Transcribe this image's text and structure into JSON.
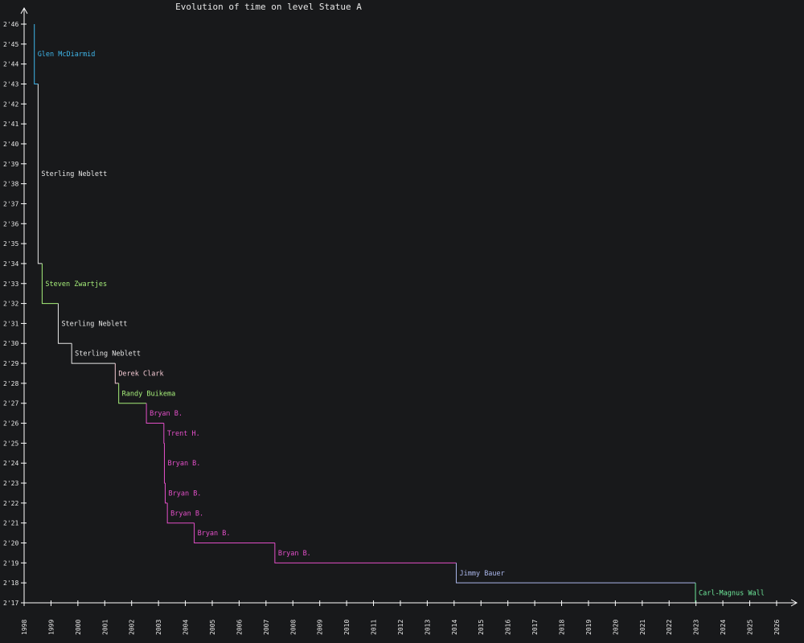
{
  "chart_data": {
    "type": "line",
    "step": true,
    "title": "Evolution of time on level Statue A",
    "xlabel": "",
    "ylabel": "",
    "xlim": [
      1998,
      2026.75
    ],
    "ylim": [
      137,
      166
    ],
    "x_ticks": [
      {
        "value": 1998,
        "label": "1998"
      },
      {
        "value": 1999,
        "label": "1999"
      },
      {
        "value": 2000,
        "label": "2000"
      },
      {
        "value": 2001,
        "label": "2001"
      },
      {
        "value": 2002,
        "label": "2002"
      },
      {
        "value": 2003,
        "label": "2003"
      },
      {
        "value": 2004,
        "label": "2004"
      },
      {
        "value": 2005,
        "label": "2005"
      },
      {
        "value": 2006,
        "label": "2006"
      },
      {
        "value": 2007,
        "label": "2007"
      },
      {
        "value": 2008,
        "label": "2008"
      },
      {
        "value": 2009,
        "label": "2009"
      },
      {
        "value": 2010,
        "label": "2010"
      },
      {
        "value": 2011,
        "label": "2011"
      },
      {
        "value": 2012,
        "label": "2012"
      },
      {
        "value": 2013,
        "label": "2013"
      },
      {
        "value": 2014,
        "label": "2014"
      },
      {
        "value": 2015,
        "label": "2015"
      },
      {
        "value": 2016,
        "label": "2016"
      },
      {
        "value": 2017,
        "label": "2017"
      },
      {
        "value": 2018,
        "label": "2018"
      },
      {
        "value": 2019,
        "label": "2019"
      },
      {
        "value": 2020,
        "label": "2020"
      },
      {
        "value": 2021,
        "label": "2021"
      },
      {
        "value": 2022,
        "label": "2022"
      },
      {
        "value": 2023,
        "label": "2023"
      },
      {
        "value": 2024,
        "label": "2024"
      },
      {
        "value": 2025,
        "label": "2025"
      },
      {
        "value": 2026,
        "label": "2026"
      }
    ],
    "y_ticks": [
      {
        "value": 137,
        "label": "2'17"
      },
      {
        "value": 138,
        "label": "2'18"
      },
      {
        "value": 139,
        "label": "2'19"
      },
      {
        "value": 140,
        "label": "2'20"
      },
      {
        "value": 141,
        "label": "2'21"
      },
      {
        "value": 142,
        "label": "2'22"
      },
      {
        "value": 143,
        "label": "2'23"
      },
      {
        "value": 144,
        "label": "2'24"
      },
      {
        "value": 145,
        "label": "2'25"
      },
      {
        "value": 146,
        "label": "2'26"
      },
      {
        "value": 147,
        "label": "2'27"
      },
      {
        "value": 148,
        "label": "2'28"
      },
      {
        "value": 149,
        "label": "2'29"
      },
      {
        "value": 150,
        "label": "2'30"
      },
      {
        "value": 151,
        "label": "2'31"
      },
      {
        "value": 152,
        "label": "2'32"
      },
      {
        "value": 153,
        "label": "2'33"
      },
      {
        "value": 154,
        "label": "2'34"
      },
      {
        "value": 155,
        "label": "2'35"
      },
      {
        "value": 156,
        "label": "2'36"
      },
      {
        "value": 157,
        "label": "2'37"
      },
      {
        "value": 158,
        "label": "2'38"
      },
      {
        "value": 159,
        "label": "2'39"
      },
      {
        "value": 160,
        "label": "2'40"
      },
      {
        "value": 161,
        "label": "2'41"
      },
      {
        "value": 162,
        "label": "2'42"
      },
      {
        "value": 163,
        "label": "2'43"
      },
      {
        "value": 164,
        "label": "2'44"
      },
      {
        "value": 165,
        "label": "2'45"
      },
      {
        "value": 166,
        "label": "2'46"
      }
    ],
    "grid": false,
    "legend": "none",
    "records": [
      {
        "player": "Glen McDiarmid",
        "date": 1998.38,
        "time": 166,
        "color": "#3fb6ea"
      },
      {
        "player": "Sterling Neblett",
        "date": 1998.52,
        "time": 163,
        "color": "#e6e6e6"
      },
      {
        "player": "Steven Zwartjes",
        "date": 1998.67,
        "time": 154,
        "color": "#a6ee7a"
      },
      {
        "player": "Sterling Neblett",
        "date": 1999.27,
        "time": 152,
        "color": "#e6e6e6"
      },
      {
        "player": "Sterling Neblett",
        "date": 1999.77,
        "time": 150,
        "color": "#e6e6e6"
      },
      {
        "player": "Derek Clark",
        "date": 2001.39,
        "time": 149,
        "color": "#f2c8d2"
      },
      {
        "player": "Randy Buikema",
        "date": 2001.52,
        "time": 148,
        "color": "#a6ee7a"
      },
      {
        "player": "Bryan B.",
        "date": 2002.55,
        "time": 147,
        "color": "#e24fc8"
      },
      {
        "player": "Trent H.",
        "date": 2003.2,
        "time": 146,
        "color": "#e24fc8"
      },
      {
        "player": "Bryan B.",
        "date": 2003.22,
        "time": 145,
        "color": "#e24fc8"
      },
      {
        "player": "Bryan B.",
        "date": 2003.25,
        "time": 143,
        "color": "#e24fc8"
      },
      {
        "player": "Bryan B.",
        "date": 2003.33,
        "time": 142,
        "color": "#e24fc8"
      },
      {
        "player": "Bryan B.",
        "date": 2004.33,
        "time": 141,
        "color": "#e24fc8"
      },
      {
        "player": "Bryan B.",
        "date": 2007.33,
        "time": 140,
        "color": "#e24fc8"
      },
      {
        "player": "Jimmy Bauer",
        "date": 2014.08,
        "time": 139,
        "color": "#aab6ea"
      },
      {
        "player": "Carl-Magnus Wall",
        "date": 2022.98,
        "time": 138,
        "color": "#6ee89a"
      }
    ],
    "end_date": 2025.25,
    "end_time": 137
  },
  "colors": {
    "background": "#18191b",
    "axis": "#ffffff",
    "text": "#e6e6e6"
  }
}
